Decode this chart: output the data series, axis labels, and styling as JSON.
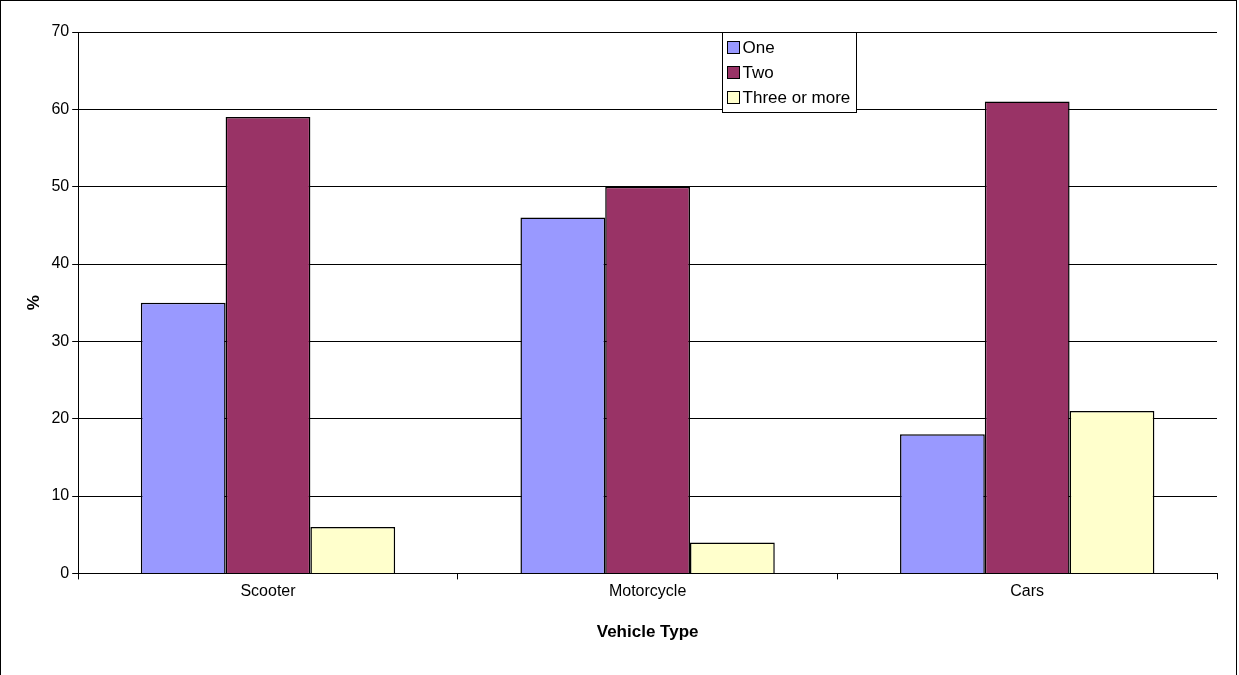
{
  "chart_data": {
    "type": "bar",
    "xlabel": "Vehicle Type",
    "ylabel": "%",
    "categories": [
      "Scooter",
      "Motorcycle",
      "Cars"
    ],
    "series": [
      {
        "name": "One",
        "color": "#9999ff",
        "values": [
          35,
          46,
          18
        ]
      },
      {
        "name": "Two",
        "color": "#993366",
        "values": [
          59,
          50,
          61
        ]
      },
      {
        "name": "Three or more",
        "color": "#ffffcc",
        "values": [
          6,
          4,
          21
        ]
      }
    ],
    "ylim": [
      0,
      70
    ],
    "yticks": [
      0,
      10,
      20,
      30,
      40,
      50,
      60,
      70
    ],
    "grid": "y",
    "legend": "top"
  }
}
